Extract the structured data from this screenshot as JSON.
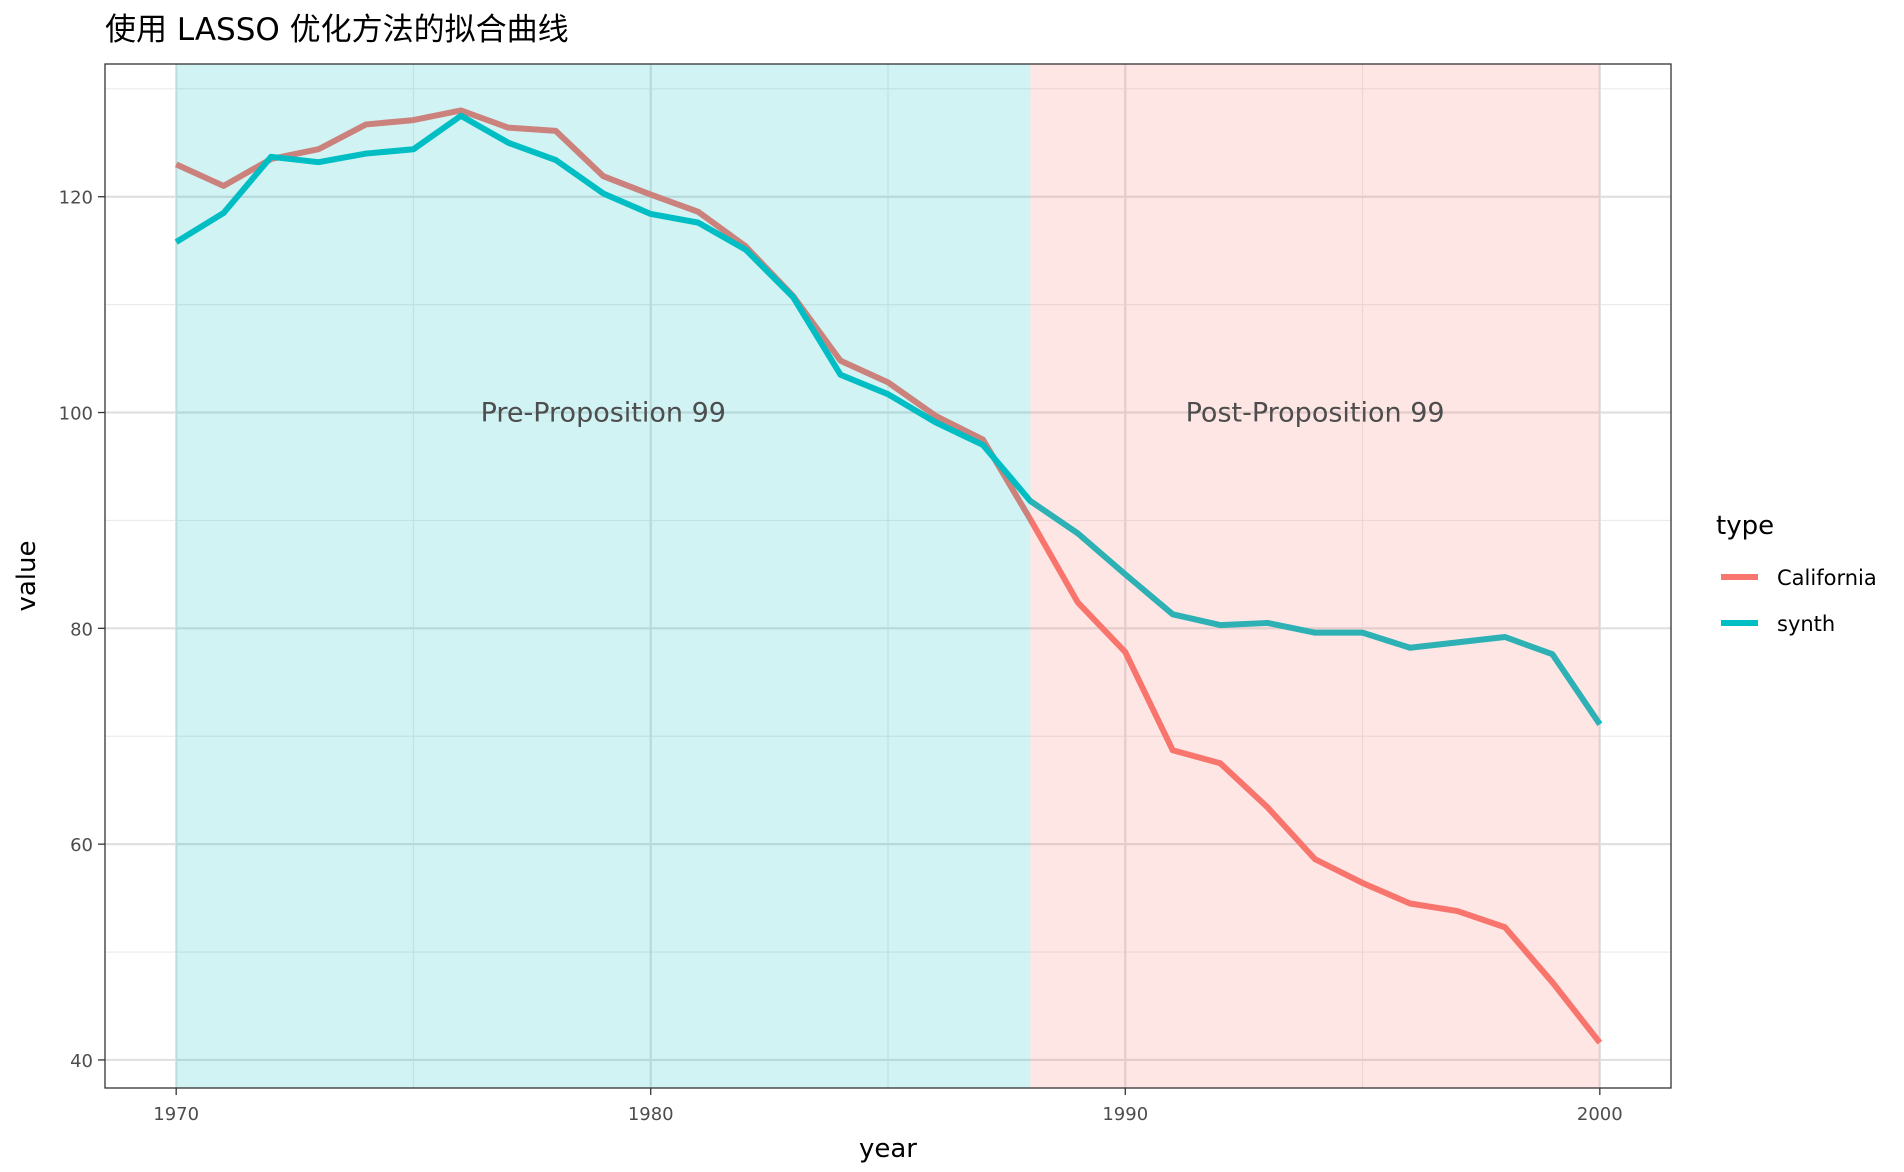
{
  "chart_data": {
    "type": "line",
    "title": "使用 LASSO 优化方法的拟合曲线",
    "xlabel": "year",
    "ylabel": "value",
    "xlim": [
      1968.5,
      2001.5
    ],
    "ylim": [
      37.4,
      132.3
    ],
    "xticks": [
      1970,
      1980,
      1990,
      2000
    ],
    "yticks": [
      40,
      60,
      80,
      100,
      120
    ],
    "grid": true,
    "legend": {
      "title": "type",
      "placement": "right"
    },
    "x": [
      1970,
      1971,
      1972,
      1973,
      1974,
      1975,
      1976,
      1977,
      1978,
      1979,
      1980,
      1981,
      1982,
      1983,
      1984,
      1985,
      1986,
      1987,
      1988,
      1989,
      1990,
      1991,
      1992,
      1993,
      1994,
      1995,
      1996,
      1997,
      1998,
      1999,
      2000
    ],
    "series": [
      {
        "name": "California",
        "color": "#F8766D",
        "values": [
          123.0,
          121.0,
          123.5,
          124.4,
          126.7,
          127.1,
          128.0,
          126.4,
          126.1,
          121.9,
          120.2,
          118.6,
          115.4,
          110.8,
          104.8,
          102.8,
          99.7,
          97.5,
          90.1,
          82.4,
          77.8,
          68.7,
          67.5,
          63.4,
          58.6,
          56.4,
          54.5,
          53.8,
          52.3,
          47.2,
          41.6
        ]
      },
      {
        "name": "synth",
        "color": "#00BFC4",
        "values": [
          115.8,
          118.5,
          123.7,
          123.2,
          124.0,
          124.4,
          127.5,
          125.0,
          123.4,
          120.3,
          118.4,
          117.6,
          115.1,
          110.7,
          103.5,
          101.7,
          99.1,
          97.0,
          91.8,
          88.8,
          85.0,
          81.3,
          80.3,
          80.5,
          79.6,
          79.6,
          78.2,
          78.7,
          79.2,
          77.6,
          71.1
        ]
      }
    ],
    "regions": [
      {
        "label": "Pre-Proposition 99",
        "from": 1970,
        "to": 1988,
        "color": "#00BFC4",
        "label_x": 1979,
        "label_y": 100
      },
      {
        "label": "Post-Proposition 99",
        "from": 1988,
        "to": 2000,
        "color": "#F8766D",
        "label_x": 1994,
        "label_y": 100
      }
    ]
  }
}
